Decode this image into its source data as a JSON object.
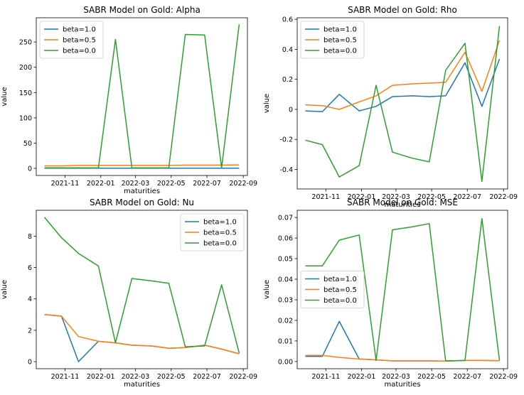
{
  "figure": {
    "series_colors": {
      "beta=1.0": "#1f77b4",
      "beta=0.5": "#ff7f0e",
      "beta=0.0": "#2ca02c"
    }
  },
  "chart_data": [
    {
      "type": "line",
      "title": "SABR Model on Gold: Alpha",
      "xlabel": "maturities",
      "ylabel": "value",
      "x": [
        "2021-09-27",
        "2021-10-26",
        "2021-11-24",
        "2021-12-28",
        "2022-01-26",
        "2022-02-23",
        "2022-03-29",
        "2022-04-27",
        "2022-05-25",
        "2022-06-27",
        "2022-07-26",
        "2022-08-25"
      ],
      "xticks": [
        "2021-11",
        "2022-01",
        "2022-03",
        "2022-05",
        "2022-07",
        "2022-09"
      ],
      "yticks": [
        0,
        50,
        100,
        150,
        200,
        250
      ],
      "ylim": [
        -14,
        298
      ],
      "legend": "upper left",
      "series": [
        {
          "name": "beta=1.0",
          "values": [
            0.5,
            0.5,
            0.5,
            0.5,
            0.5,
            0.5,
            0.5,
            0.5,
            0.5,
            0.5,
            0.5,
            0.5
          ]
        },
        {
          "name": "beta=0.5",
          "values": [
            5,
            5,
            6,
            6,
            6,
            6,
            6,
            6,
            6.5,
            6.5,
            6.5,
            7
          ]
        },
        {
          "name": "beta=0.0",
          "values": [
            1,
            1,
            1,
            1,
            255,
            1,
            1,
            1,
            265,
            264,
            1,
            285
          ]
        }
      ]
    },
    {
      "type": "line",
      "title": "SABR Model on Gold: Rho",
      "xlabel": "maturities",
      "ylabel": "value",
      "x": [
        "2021-09-27",
        "2021-10-26",
        "2021-11-24",
        "2021-12-28",
        "2022-01-26",
        "2022-02-23",
        "2022-03-29",
        "2022-04-27",
        "2022-05-25",
        "2022-06-27",
        "2022-07-26",
        "2022-08-25"
      ],
      "xticks": [
        "2021-11",
        "2022-01",
        "2022-03",
        "2022-05",
        "2022-07",
        "2022-09"
      ],
      "yticks": [
        -0.4,
        -0.2,
        0.0,
        0.2,
        0.4,
        0.6
      ],
      "ylim": [
        -0.53,
        0.61
      ],
      "legend": "upper left",
      "series": [
        {
          "name": "beta=1.0",
          "values": [
            -0.01,
            -0.015,
            0.1,
            -0.01,
            0.02,
            0.085,
            0.09,
            0.085,
            0.09,
            0.31,
            0.02,
            0.335
          ]
        },
        {
          "name": "beta=0.5",
          "values": [
            0.03,
            0.025,
            0.0,
            0.05,
            0.09,
            0.16,
            0.17,
            0.175,
            0.18,
            0.38,
            0.12,
            0.46
          ]
        },
        {
          "name": "beta=0.0",
          "values": [
            -0.205,
            -0.235,
            -0.45,
            -0.375,
            0.16,
            -0.285,
            -0.325,
            -0.35,
            0.26,
            0.44,
            -0.48,
            0.555
          ]
        }
      ]
    },
    {
      "type": "line",
      "title": "SABR Model on Gold: Nu",
      "xlabel": "maturities",
      "ylabel": "value",
      "x": [
        "2021-09-27",
        "2021-10-26",
        "2021-11-24",
        "2021-12-28",
        "2022-01-26",
        "2022-02-23",
        "2022-03-29",
        "2022-04-27",
        "2022-05-25",
        "2022-06-27",
        "2022-07-26",
        "2022-08-25"
      ],
      "xticks": [
        "2021-11",
        "2022-01",
        "2022-03",
        "2022-05",
        "2022-07",
        "2022-09"
      ],
      "yticks": [
        0,
        2,
        4,
        6,
        8
      ],
      "ylim": [
        -0.45,
        9.65
      ],
      "legend": "upper right",
      "series": [
        {
          "name": "beta=1.0",
          "values": [
            3.0,
            2.9,
            0.0,
            1.3,
            1.2,
            1.05,
            1.0,
            0.85,
            0.9,
            1.05,
            0.8,
            0.5
          ]
        },
        {
          "name": "beta=0.5",
          "values": [
            3.0,
            2.9,
            1.6,
            1.3,
            1.2,
            1.05,
            1.0,
            0.85,
            0.9,
            1.05,
            0.8,
            0.5
          ]
        },
        {
          "name": "beta=0.0",
          "values": [
            9.2,
            7.9,
            6.9,
            6.1,
            1.2,
            5.3,
            5.15,
            5.0,
            0.95,
            1.0,
            4.9,
            0.55
          ]
        }
      ]
    },
    {
      "type": "line",
      "title": "SABR Model on Gold: MSE",
      "xlabel": "maturities",
      "ylabel": "value",
      "x": [
        "2021-09-27",
        "2021-10-26",
        "2021-11-24",
        "2021-12-28",
        "2022-01-26",
        "2022-02-23",
        "2022-03-29",
        "2022-04-27",
        "2022-05-25",
        "2022-06-27",
        "2022-07-26",
        "2022-08-25"
      ],
      "xticks": [
        "2021-11",
        "2022-01",
        "2022-03",
        "2022-05",
        "2022-07",
        "2022-09"
      ],
      "yticks": [
        "0.00",
        "0.01",
        "0.02",
        "0.03",
        "0.04",
        "0.05",
        "0.06",
        "0.07"
      ],
      "ylim": [
        -0.0035,
        0.0735
      ],
      "legend": "center left",
      "series": [
        {
          "name": "beta=1.0",
          "values": [
            0.0025,
            0.0025,
            0.0195,
            0.0012,
            0.0008,
            0.0003,
            0.0003,
            0.0003,
            0.0002,
            0.0005,
            0.0005,
            0.0004
          ]
        },
        {
          "name": "beta=0.5",
          "values": [
            0.003,
            0.003,
            0.002,
            0.0012,
            0.0008,
            0.0003,
            0.0003,
            0.0003,
            0.0002,
            0.0005,
            0.0005,
            0.0004
          ]
        },
        {
          "name": "beta=0.0",
          "values": [
            0.0465,
            0.0465,
            0.059,
            0.0615,
            0.0005,
            0.064,
            0.0655,
            0.067,
            0.0003,
            0.0005,
            0.0695,
            0.0005
          ]
        }
      ]
    }
  ]
}
